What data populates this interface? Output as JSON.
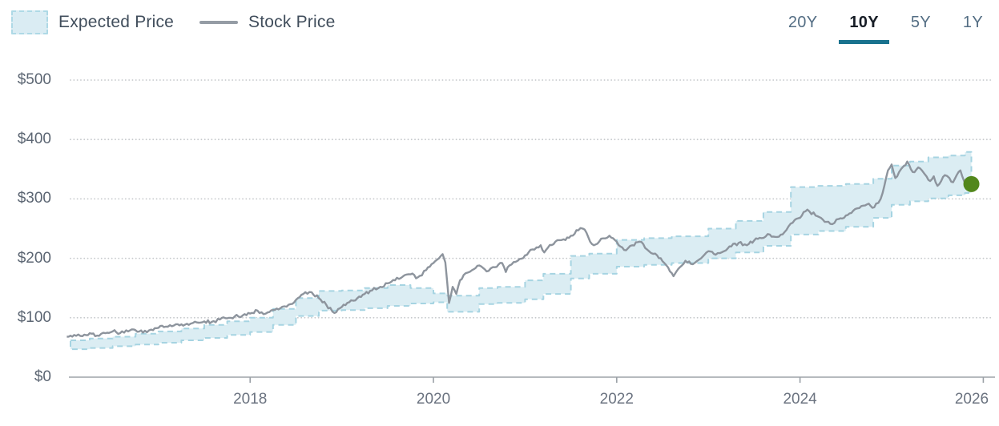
{
  "legend": {
    "expected_price_label": "Expected Price",
    "stock_price_label": "Stock Price"
  },
  "range_selector": {
    "options": [
      {
        "label": "20Y",
        "selected": false
      },
      {
        "label": "10Y",
        "selected": true
      },
      {
        "label": "5Y",
        "selected": false
      },
      {
        "label": "1Y",
        "selected": false
      }
    ]
  },
  "colors": {
    "band_fill": "#dbedf3",
    "band_stroke": "#a6d4e2",
    "line": "#8d949d",
    "marker": "#52871c",
    "selected_underline": "#19728e",
    "gridline": "#c6c9cc",
    "axis_line": "#b6babe",
    "tick": "#9aa0a6"
  },
  "chart_data": {
    "type": "line",
    "title": "",
    "xlabel": "",
    "ylabel": "",
    "xlim": [
      2016.04,
      2026.11
    ],
    "ylim": [
      0,
      500
    ],
    "grid": "dotted-horizontal",
    "legend_position": "top-left",
    "x_ticks": [
      2018,
      2020,
      2022,
      2024,
      2026
    ],
    "x_tick_labels": [
      "2018",
      "2020",
      "2022",
      "2024",
      "2026"
    ],
    "y_ticks": [
      0,
      100,
      200,
      300,
      400,
      500
    ],
    "y_tick_labels": [
      "$0",
      "$100",
      "$200",
      "$300",
      "$400",
      "$500"
    ],
    "series": [
      {
        "name": "Stock Price",
        "type": "line",
        "color": "#8d949d",
        "x": [
          2016.0,
          2016.08,
          2016.17,
          2016.25,
          2016.33,
          2016.42,
          2016.5,
          2016.58,
          2016.67,
          2016.75,
          2016.83,
          2016.92,
          2017.0,
          2017.08,
          2017.17,
          2017.25,
          2017.33,
          2017.42,
          2017.5,
          2017.58,
          2017.67,
          2017.75,
          2017.83,
          2017.92,
          2018.0,
          2018.08,
          2018.17,
          2018.25,
          2018.33,
          2018.42,
          2018.5,
          2018.58,
          2018.67,
          2018.75,
          2018.83,
          2018.92,
          2019.0,
          2019.08,
          2019.17,
          2019.25,
          2019.33,
          2019.42,
          2019.5,
          2019.58,
          2019.67,
          2019.75,
          2019.83,
          2019.92,
          2020.0,
          2020.06,
          2020.1,
          2020.13,
          2020.15,
          2020.17,
          2020.21,
          2020.25,
          2020.29,
          2020.33,
          2020.42,
          2020.5,
          2020.58,
          2020.67,
          2020.75,
          2020.79,
          2020.83,
          2020.92,
          2021.0,
          2021.08,
          2021.17,
          2021.21,
          2021.25,
          2021.33,
          2021.42,
          2021.5,
          2021.58,
          2021.63,
          2021.67,
          2021.71,
          2021.75,
          2021.83,
          2021.92,
          2022.0,
          2022.08,
          2022.17,
          2022.25,
          2022.33,
          2022.42,
          2022.5,
          2022.58,
          2022.62,
          2022.67,
          2022.75,
          2022.83,
          2022.92,
          2023.0,
          2023.08,
          2023.17,
          2023.25,
          2023.33,
          2023.42,
          2023.5,
          2023.58,
          2023.67,
          2023.75,
          2023.83,
          2023.92,
          2024.0,
          2024.04,
          2024.08,
          2024.17,
          2024.25,
          2024.33,
          2024.42,
          2024.5,
          2024.58,
          2024.67,
          2024.75,
          2024.79,
          2024.83,
          2024.88,
          2024.92,
          2024.96,
          2025.0,
          2025.04,
          2025.08,
          2025.13,
          2025.17,
          2025.21,
          2025.25,
          2025.29,
          2025.33,
          2025.38,
          2025.42,
          2025.46,
          2025.5,
          2025.54,
          2025.58,
          2025.63,
          2025.67,
          2025.71,
          2025.75,
          2025.79,
          2025.83,
          2025.87
        ],
        "y": [
          68,
          71,
          69,
          74,
          70,
          74,
          77,
          74,
          77,
          79,
          75,
          80,
          83,
          85,
          87,
          89,
          88,
          92,
          94,
          93,
          97,
          99,
          102,
          104,
          107,
          112,
          107,
          113,
          116,
          122,
          130,
          140,
          143,
          133,
          122,
          108,
          118,
          126,
          133,
          140,
          146,
          152,
          158,
          163,
          170,
          173,
          168,
          180,
          192,
          200,
          207,
          193,
          160,
          125,
          152,
          140,
          163,
          172,
          180,
          188,
          178,
          185,
          192,
          177,
          188,
          196,
          205,
          215,
          222,
          210,
          218,
          228,
          232,
          238,
          247,
          250,
          243,
          228,
          222,
          233,
          238,
          228,
          214,
          222,
          228,
          215,
          208,
          195,
          178,
          170,
          182,
          196,
          190,
          200,
          212,
          206,
          212,
          220,
          226,
          222,
          230,
          234,
          240,
          236,
          244,
          260,
          268,
          278,
          282,
          272,
          265,
          258,
          266,
          272,
          280,
          288,
          292,
          285,
          292,
          300,
          322,
          348,
          358,
          335,
          345,
          355,
          363,
          350,
          345,
          353,
          348,
          338,
          330,
          338,
          322,
          330,
          340,
          335,
          328,
          340,
          348,
          330,
          318,
          325
        ]
      },
      {
        "name": "Expected Price",
        "type": "band",
        "fill": "#dbedf3",
        "stroke": "#a6d4e2",
        "steps": [
          {
            "x": 2016.0,
            "low": 47,
            "high": 62
          },
          {
            "x": 2016.25,
            "low": 49,
            "high": 65
          },
          {
            "x": 2016.5,
            "low": 52,
            "high": 68
          },
          {
            "x": 2016.75,
            "low": 55,
            "high": 73
          },
          {
            "x": 2017.0,
            "low": 58,
            "high": 77
          },
          {
            "x": 2017.25,
            "low": 62,
            "high": 82
          },
          {
            "x": 2017.5,
            "low": 66,
            "high": 88
          },
          {
            "x": 2017.75,
            "low": 71,
            "high": 94
          },
          {
            "x": 2018.0,
            "low": 76,
            "high": 100
          },
          {
            "x": 2018.25,
            "low": 88,
            "high": 115
          },
          {
            "x": 2018.5,
            "low": 103,
            "high": 133
          },
          {
            "x": 2018.75,
            "low": 112,
            "high": 145
          },
          {
            "x": 2019.0,
            "low": 113,
            "high": 146
          },
          {
            "x": 2019.25,
            "low": 116,
            "high": 150
          },
          {
            "x": 2019.5,
            "low": 120,
            "high": 155
          },
          {
            "x": 2019.75,
            "low": 124,
            "high": 150
          },
          {
            "x": 2020.0,
            "low": 126,
            "high": 141
          },
          {
            "x": 2020.15,
            "low": 110,
            "high": 137
          },
          {
            "x": 2020.5,
            "low": 123,
            "high": 150
          },
          {
            "x": 2020.7,
            "low": 125,
            "high": 152
          },
          {
            "x": 2021.0,
            "low": 131,
            "high": 163
          },
          {
            "x": 2021.2,
            "low": 140,
            "high": 174
          },
          {
            "x": 2021.5,
            "low": 166,
            "high": 204
          },
          {
            "x": 2021.7,
            "low": 174,
            "high": 208
          },
          {
            "x": 2022.0,
            "low": 186,
            "high": 231
          },
          {
            "x": 2022.3,
            "low": 189,
            "high": 234
          },
          {
            "x": 2022.6,
            "low": 192,
            "high": 237
          },
          {
            "x": 2023.0,
            "low": 200,
            "high": 250
          },
          {
            "x": 2023.3,
            "low": 210,
            "high": 263
          },
          {
            "x": 2023.6,
            "low": 221,
            "high": 278
          },
          {
            "x": 2023.9,
            "low": 240,
            "high": 320
          },
          {
            "x": 2024.2,
            "low": 246,
            "high": 322
          },
          {
            "x": 2024.5,
            "low": 253,
            "high": 325
          },
          {
            "x": 2024.8,
            "low": 268,
            "high": 334
          },
          {
            "x": 2025.0,
            "low": 290,
            "high": 356
          },
          {
            "x": 2025.2,
            "low": 296,
            "high": 363
          },
          {
            "x": 2025.4,
            "low": 301,
            "high": 370
          },
          {
            "x": 2025.62,
            "low": 306,
            "high": 373
          },
          {
            "x": 2025.8,
            "low": 310,
            "high": 379
          }
        ],
        "end_x": 2025.87
      }
    ],
    "last_point": {
      "x": 2025.87,
      "y": 325,
      "marker_color": "#52871c"
    }
  }
}
